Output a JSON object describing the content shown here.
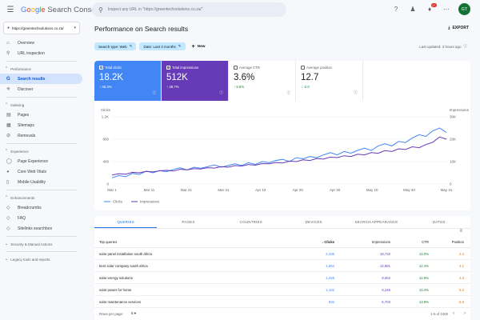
{
  "topbar": {
    "brand_google": "Google",
    "brand_product": "Search Console",
    "search_placeholder": "Inspect any URL in \"https://greentechsolutions.co.za/\"",
    "notification_count": "17",
    "avatar_initials": "GT"
  },
  "sidebar": {
    "property": "https://greentechsolutions.co.za/",
    "top_items": [
      {
        "label": "Overview",
        "icon": "home-icon"
      },
      {
        "label": "URL inspection",
        "icon": "search-icon"
      }
    ],
    "performance_label": "Performance",
    "performance_items": [
      {
        "label": "Search results",
        "icon": "google-g-icon"
      },
      {
        "label": "Discover",
        "icon": "asterisk-icon"
      }
    ],
    "indexing_label": "Indexing",
    "indexing_items": [
      {
        "label": "Pages",
        "icon": "pages-icon"
      },
      {
        "label": "Sitemaps",
        "icon": "sitemap-icon"
      },
      {
        "label": "Removals",
        "icon": "removals-icon"
      }
    ],
    "experience_label": "Experience",
    "experience_items": [
      {
        "label": "Page Experience",
        "icon": "page-experience-icon"
      },
      {
        "label": "Core Web Vitals",
        "icon": "speed-icon"
      },
      {
        "label": "Mobile Usability",
        "icon": "mobile-icon"
      }
    ],
    "enhancements_label": "Enhancements",
    "enhancements_items": [
      {
        "label": "Breadcrumbs",
        "icon": "breadcrumb-icon"
      },
      {
        "label": "FAQ",
        "icon": "faq-icon"
      },
      {
        "label": "Sitelinks searchbox",
        "icon": "searchbox-icon"
      }
    ],
    "security_label": "Security & Manual Actions",
    "legacy_label": "Legacy tools and reports"
  },
  "main": {
    "title": "Performance on Search results",
    "export_label": "EXPORT",
    "filters": [
      {
        "label": "Search type: Web"
      },
      {
        "label": "Date: Last 3 months"
      }
    ],
    "new_label": "New",
    "last_updated": "Last updated: 3 hours ago"
  },
  "metrics": {
    "clicks": {
      "label": "Total clicks",
      "value": "18.2K",
      "change": "↑ 46.3%"
    },
    "impressions": {
      "label": "Total impressions",
      "value": "512K",
      "change": "↑ 38.7%"
    },
    "ctr": {
      "label": "Average CTR",
      "value": "3.6%",
      "change": "↑ 5.5%"
    },
    "position": {
      "label": "Average position",
      "value": "12.7",
      "change": "↓ -2.0"
    }
  },
  "chart_data": {
    "type": "line",
    "left_axis_label": "Clicks",
    "right_axis_label": "Impressions",
    "left_ticks": [
      "1.2K",
      "800",
      "400",
      "0"
    ],
    "right_ticks": [
      "30K",
      "20K",
      "10K",
      "0"
    ],
    "x_ticks": [
      "Mar 1",
      "Mar 11",
      "Mar 21",
      "Mar 31",
      "Apr 10",
      "Apr 20",
      "Apr 30",
      "May 10",
      "May 20",
      "May 31"
    ],
    "ylim_left": [
      0,
      1200
    ],
    "ylim_right": [
      0,
      30000
    ],
    "series": [
      {
        "name": "Clicks",
        "color": "#4285f4",
        "values": [
          110,
          150,
          130,
          190,
          170,
          230,
          200,
          240,
          220,
          260,
          290,
          250,
          300,
          280,
          310,
          340,
          300,
          330,
          360,
          330,
          380,
          350,
          400,
          380,
          420,
          440,
          400,
          470,
          450,
          490,
          470,
          520,
          560,
          520,
          580,
          550,
          600,
          640,
          600,
          680,
          720,
          680,
          760,
          740,
          820,
          880,
          850,
          950,
          1000,
          920
        ]
      },
      {
        "name": "Impressions",
        "color": "#673ab7",
        "values": [
          4000,
          4600,
          4400,
          5200,
          5000,
          5600,
          5400,
          5900,
          6100,
          5800,
          6600,
          6300,
          6900,
          6700,
          7300,
          7100,
          7800,
          7500,
          8200,
          8000,
          8700,
          8400,
          9100,
          9000,
          9600,
          9400,
          10200,
          10000,
          10800,
          10500,
          11400,
          11100,
          12000,
          11800,
          12600,
          12300,
          13300,
          13000,
          14000,
          13700,
          14900,
          14500,
          15700,
          15400,
          16600,
          16200,
          17600,
          18600,
          21000,
          20000
        ]
      }
    ],
    "legend": [
      "Clicks",
      "Impressions"
    ],
    "legend_position": "bottom-left",
    "grid": true
  },
  "table": {
    "tabs": [
      "QUERIES",
      "PAGES",
      "COUNTRIES",
      "DEVICES",
      "SEARCH APPEARANCE",
      "DATES"
    ],
    "active_tab": "QUERIES",
    "headers": {
      "query": "Top queries",
      "clicks": "↓ Clicks",
      "impressions": "Impressions",
      "ctr": "CTR",
      "position": "Position"
    },
    "rows": [
      {
        "query": "solar panel installation south africa",
        "clicks": "2,436",
        "impressions": "18,732",
        "ctr": "13.0%",
        "position": "2.4"
      },
      {
        "query": "best solar company south africa",
        "clicks": "1,854",
        "impressions": "14,981",
        "ctr": "12.4%",
        "position": "4.1"
      },
      {
        "query": "solar energy solutions",
        "clicks": "1,245",
        "impressions": "9,652",
        "ctr": "12.9%",
        "position": "4.3"
      },
      {
        "query": "solar power for home",
        "clicks": "1,102",
        "impressions": "8,245",
        "ctr": "13.4%",
        "position": "5.2"
      },
      {
        "query": "solar maintenance services",
        "clicks": "932",
        "impressions": "6,703",
        "ctr": "13.9%",
        "position": "5.6"
      }
    ],
    "rows_per_page_label": "Rows per page:",
    "rows_per_page_value": "5",
    "range": "1-5 of 1000"
  }
}
